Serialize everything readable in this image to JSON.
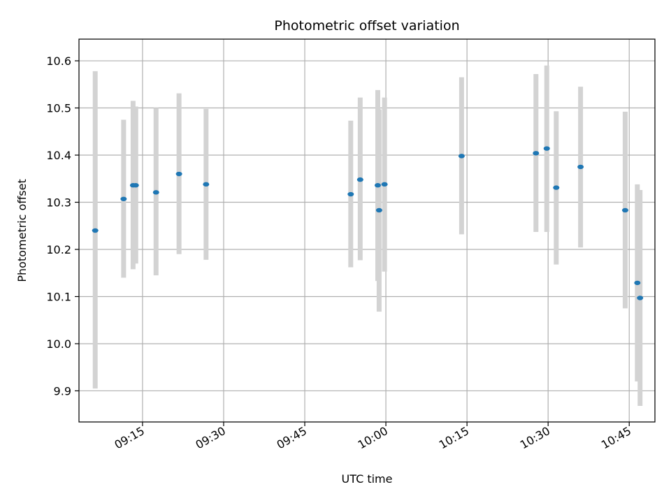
{
  "chart_data": {
    "type": "scatter",
    "title": "Photometric offset variation",
    "xlabel": "UTC time",
    "ylabel": "Photometric offset",
    "xlim": [
      "09:03:15",
      "10:49:45"
    ],
    "ylim": [
      9.834,
      10.646
    ],
    "grid": true,
    "x_ticks": [
      "09:15",
      "09:30",
      "09:45",
      "10:00",
      "10:15",
      "10:30",
      "10:45"
    ],
    "y_ticks": [
      "9.9",
      "10.0",
      "10.1",
      "10.2",
      "10.3",
      "10.4",
      "10.5",
      "10.6"
    ],
    "colors": {
      "marker": "#1f77b4",
      "errorbar": "#d3d3d3",
      "grid": "#b0b0b0"
    },
    "points": [
      {
        "time": "09:06:15",
        "value": 10.24,
        "err_low": 9.905,
        "err_high": 10.578
      },
      {
        "time": "09:11:30",
        "value": 10.307,
        "err_low": 10.14,
        "err_high": 10.475
      },
      {
        "time": "09:13:15",
        "value": 10.336,
        "err_low": 10.158,
        "err_high": 10.515
      },
      {
        "time": "09:13:45",
        "value": 10.336,
        "err_low": 10.17,
        "err_high": 10.503
      },
      {
        "time": "09:17:30",
        "value": 10.321,
        "err_low": 10.145,
        "err_high": 10.5
      },
      {
        "time": "09:21:45",
        "value": 10.36,
        "err_low": 10.19,
        "err_high": 10.531
      },
      {
        "time": "09:26:45",
        "value": 10.338,
        "err_low": 10.178,
        "err_high": 10.498
      },
      {
        "time": "09:53:30",
        "value": 10.317,
        "err_low": 10.162,
        "err_high": 10.473
      },
      {
        "time": "09:55:15",
        "value": 10.348,
        "err_low": 10.177,
        "err_high": 10.522
      },
      {
        "time": "09:58:30",
        "value": 10.336,
        "err_low": 10.133,
        "err_high": 10.538
      },
      {
        "time": "09:58:45",
        "value": 10.283,
        "err_low": 10.068,
        "err_high": 10.497
      },
      {
        "time": "09:59:45",
        "value": 10.338,
        "err_low": 10.153,
        "err_high": 10.522
      },
      {
        "time": "10:14:00",
        "value": 10.398,
        "err_low": 10.232,
        "err_high": 10.565
      },
      {
        "time": "10:27:45",
        "value": 10.404,
        "err_low": 10.237,
        "err_high": 10.572
      },
      {
        "time": "10:29:45",
        "value": 10.414,
        "err_low": 10.237,
        "err_high": 10.59
      },
      {
        "time": "10:31:30",
        "value": 10.331,
        "err_low": 10.168,
        "err_high": 10.493
      },
      {
        "time": "10:36:00",
        "value": 10.375,
        "err_low": 10.204,
        "err_high": 10.545
      },
      {
        "time": "10:44:15",
        "value": 10.283,
        "err_low": 10.075,
        "err_high": 10.492
      },
      {
        "time": "10:46:30",
        "value": 10.129,
        "err_low": 9.92,
        "err_high": 10.338
      },
      {
        "time": "10:47:00",
        "value": 10.097,
        "err_low": 9.868,
        "err_high": 10.326
      }
    ]
  }
}
